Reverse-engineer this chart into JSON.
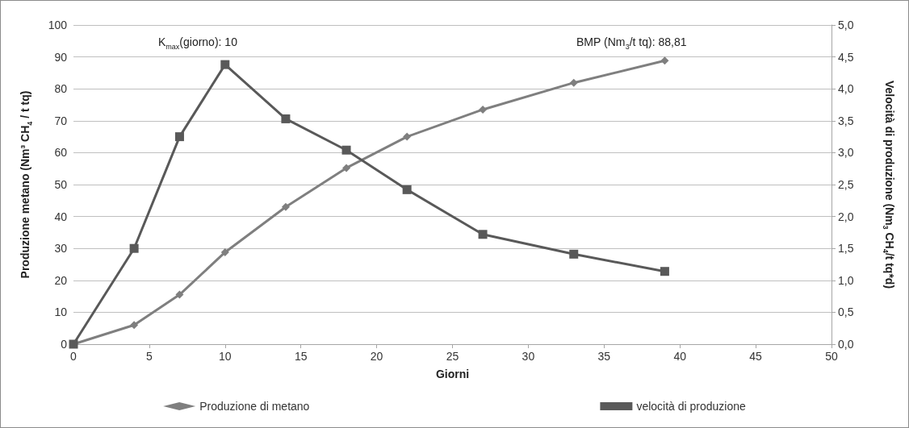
{
  "chart_data": {
    "type": "line",
    "xlabel": "Giorni",
    "ylabel": "Produzione metano (Nm³ CH$_{4}$ / t tq)",
    "y2label": "Velocità di produzione (Nm$_{3}$ CH$_{4}$/t tq*d)",
    "annotations": [
      "K$_{max}$(giorno): 10",
      "BMP (Nm$_{3}$/t tq): 88,81"
    ],
    "x": [
      0,
      4,
      7,
      10,
      14,
      18,
      22,
      27,
      33,
      39
    ],
    "series": [
      {
        "name": "Produzione di metano",
        "color": "#7f7f7f",
        "marker": "diamond",
        "values": [
          0,
          6,
          15.5,
          28.8,
          43,
          55.2,
          65,
          73.5,
          81.9,
          88.81
        ]
      },
      {
        "name": "velocità di produzione",
        "color": "#595959",
        "marker": "square",
        "axis": "y2",
        "values": [
          0,
          1.5,
          3.25,
          4.38,
          3.53,
          3.04,
          2.42,
          1.72,
          1.41,
          1.14
        ]
      }
    ],
    "xlim": [
      0,
      50
    ],
    "xticks": [
      0,
      5,
      10,
      15,
      20,
      25,
      30,
      35,
      40,
      45,
      50
    ],
    "ylim": [
      0,
      100
    ],
    "yticks": [
      0,
      10,
      20,
      30,
      40,
      50,
      60,
      70,
      80,
      90,
      100
    ],
    "y2lim": [
      0,
      5
    ],
    "y2ticks": [
      {
        "value": 0,
        "label": "0,0"
      },
      {
        "value": 0.5,
        "label": "0,5"
      },
      {
        "value": 1,
        "label": "1,0"
      },
      {
        "value": 1.5,
        "label": "1,5"
      },
      {
        "value": 2,
        "label": "2,0"
      },
      {
        "value": 2.5,
        "label": "2,5"
      },
      {
        "value": 3,
        "label": "3,0"
      },
      {
        "value": 3.5,
        "label": "3,5"
      },
      {
        "value": 4,
        "label": "4,0"
      },
      {
        "value": 4.5,
        "label": "4,5"
      },
      {
        "value": 5,
        "label": "5,0"
      }
    ],
    "grid": "y",
    "legend": "bottom",
    "line_style": "solid"
  }
}
